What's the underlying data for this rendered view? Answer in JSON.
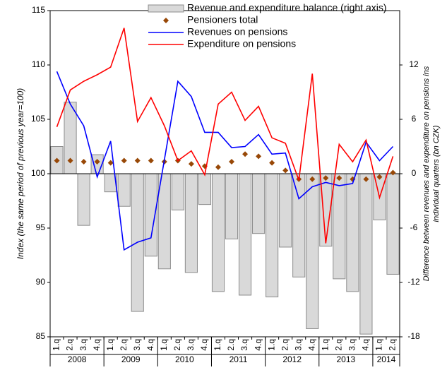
{
  "chart_data": {
    "type": "combo",
    "ylabel": "Index  (the same period of previous year=100)",
    "y2label": [
      "Difference between revenues and expenditure on pensions ins",
      "individual quarters (bn CZK)"
    ],
    "categories": [
      "1.q",
      "2.q",
      "3.q",
      "4.q",
      "1.q",
      "2.q",
      "3.q",
      "4.q",
      "1.q",
      "2.q",
      "3.q",
      "4.q",
      "1.q",
      "2.q",
      "3.q",
      "4.q",
      "1.q",
      "2.q",
      "3.q",
      "4.q",
      "1.q",
      "2.q",
      "3.q",
      "4.q",
      "1.q",
      "2.q"
    ],
    "years": [
      "2008",
      "2009",
      "2010",
      "2011",
      "2012",
      "2013",
      "2014"
    ],
    "ylim": [
      85,
      115
    ],
    "yticks": [
      85,
      90,
      95,
      100,
      105,
      110,
      115
    ],
    "y2lim": [
      -18,
      18
    ],
    "y2ticks": [
      -18,
      -12,
      -6,
      0,
      6,
      12
    ],
    "series": [
      {
        "name": "Revenue and expenditure balance (right axis)",
        "type": "bar",
        "axis": "y2",
        "color": "#d9d9d9",
        "values": [
          3.0,
          7.9,
          -5.7,
          2.1,
          -2.0,
          -3.6,
          -15.2,
          -9.1,
          -10.5,
          -4.0,
          -10.9,
          -3.4,
          -13.0,
          -7.2,
          -13.4,
          -6.6,
          -13.6,
          -8.1,
          -11.4,
          -17.1,
          -8.0,
          -11.6,
          -13.0,
          -17.7,
          -5.1,
          -11.1
        ]
      },
      {
        "name": "Pensioners total",
        "type": "scatter",
        "color": "#984807",
        "values": [
          101.2,
          101.2,
          101.1,
          101.1,
          101.0,
          101.2,
          101.2,
          101.2,
          101.1,
          101.2,
          100.9,
          100.7,
          100.6,
          101.1,
          101.8,
          101.6,
          101.0,
          100.3,
          99.5,
          99.5,
          99.6,
          99.6,
          99.5,
          99.5,
          99.7,
          100.1
        ]
      },
      {
        "name": "Revenues on pensions",
        "type": "line",
        "color": "#0000ff",
        "values": [
          109.4,
          106.4,
          104.4,
          99.7,
          103.0,
          93.0,
          93.7,
          94.1,
          101.3,
          108.5,
          107.1,
          103.8,
          103.8,
          102.4,
          102.5,
          103.6,
          101.8,
          101.9,
          97.7,
          98.8,
          99.2,
          98.9,
          99.1,
          102.9,
          101.2,
          102.5
        ]
      },
      {
        "name": "Expenditure on pensions",
        "type": "line",
        "color": "#ff0000",
        "values": [
          104.3,
          107.7,
          108.5,
          109.1,
          109.8,
          113.4,
          104.8,
          107.0,
          104.4,
          101.2,
          102.1,
          99.9,
          106.4,
          107.5,
          104.9,
          106.2,
          103.3,
          102.8,
          99.4,
          109.2,
          93.6,
          102.7,
          101.1,
          103.1,
          97.8,
          101.6
        ]
      }
    ]
  }
}
